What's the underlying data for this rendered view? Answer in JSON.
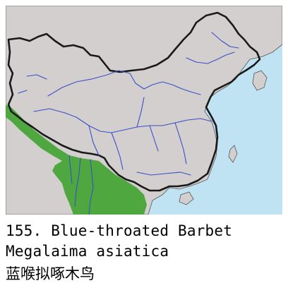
{
  "map": {
    "colors": {
      "sea": "#bfe3f2",
      "land": "#d3cfcf",
      "border": "#1a1a1a",
      "river": "#3a4fc6",
      "range": "#4fa83f"
    },
    "features": [
      "distribution-range",
      "china-border",
      "rivers",
      "sea",
      "land"
    ]
  },
  "caption": {
    "number": "155.",
    "english_name": "Blue-throated Barbet",
    "scientific_name": "Megalaima asiatica",
    "chinese_name": "蓝喉拟啄木鸟"
  }
}
